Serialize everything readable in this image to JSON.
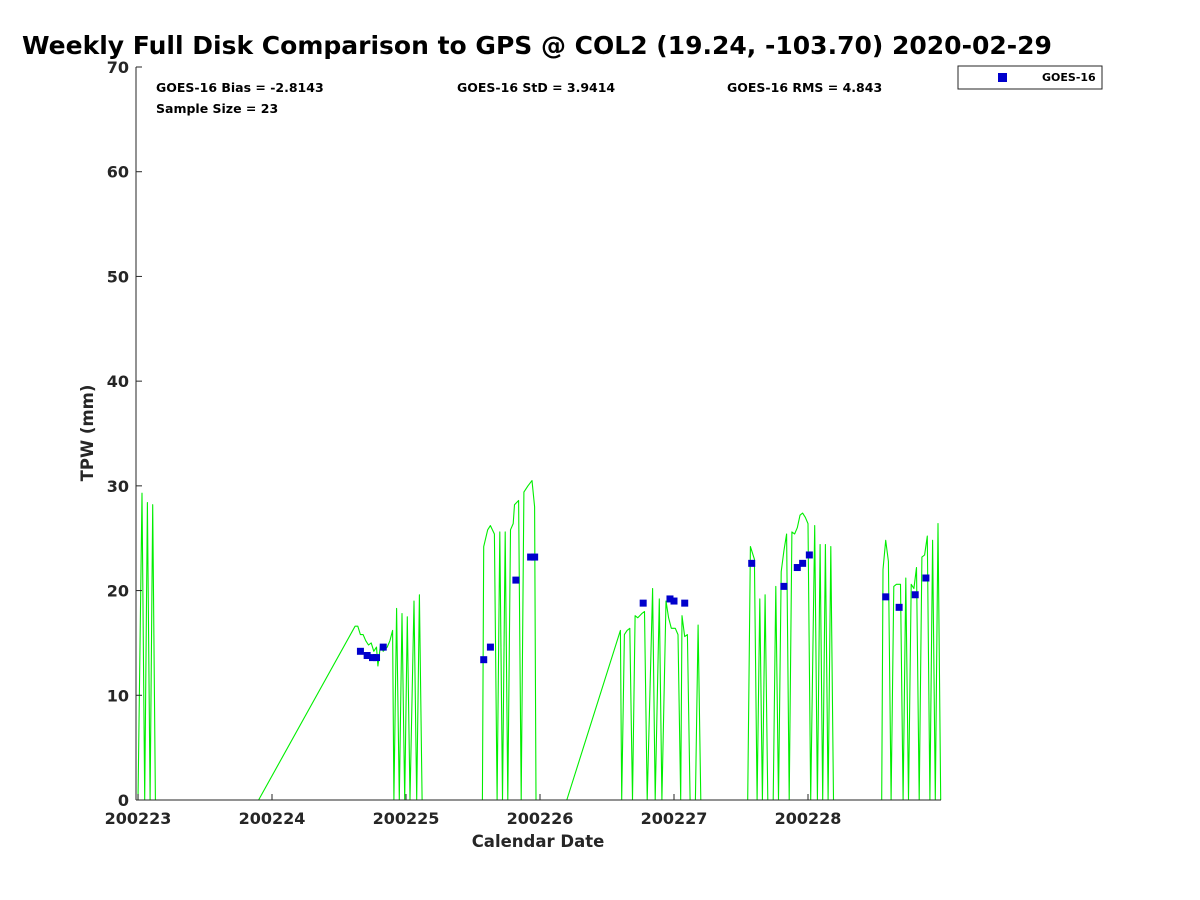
{
  "chart_data": {
    "type": "scatter",
    "title": "Weekly Full Disk Comparison to GPS @ COL2 (19.24, -103.70) 2020-02-29",
    "xlabel": "Calendar Date",
    "ylabel": "TPW (mm)",
    "xlim": [
      0,
      6
    ],
    "ylim": [
      0,
      70
    ],
    "yticks": [
      0,
      10,
      20,
      30,
      40,
      50,
      60,
      70
    ],
    "xticks": [
      {
        "v": 0,
        "label": "200223"
      },
      {
        "v": 1,
        "label": "200224"
      },
      {
        "v": 2,
        "label": "200225"
      },
      {
        "v": 3,
        "label": "200226"
      },
      {
        "v": 4,
        "label": "200227"
      },
      {
        "v": 5,
        "label": "200228"
      }
    ],
    "stats": {
      "bias": "GOES-16 Bias = -2.8143",
      "std": "GOES-16 StD = 3.9414",
      "rms": "GOES-16 RMS = 4.843",
      "sample": "Sample Size = 23"
    },
    "legend": {
      "label": "GOES-16",
      "position": "top-right",
      "color": "#0000cc"
    },
    "series": [
      {
        "name": "GOES-16",
        "color": "#0000cc",
        "points": [
          [
            1.66,
            14.2
          ],
          [
            1.71,
            13.8
          ],
          [
            1.75,
            13.6
          ],
          [
            1.78,
            13.6
          ],
          [
            1.83,
            14.6
          ],
          [
            2.58,
            13.4
          ],
          [
            2.63,
            14.6
          ],
          [
            2.82,
            21.0
          ],
          [
            2.93,
            23.2
          ],
          [
            2.96,
            23.2
          ],
          [
            3.77,
            18.8
          ],
          [
            3.97,
            19.2
          ],
          [
            4.0,
            19.0
          ],
          [
            4.08,
            18.8
          ],
          [
            4.58,
            22.6
          ],
          [
            4.82,
            20.4
          ],
          [
            4.92,
            22.2
          ],
          [
            4.96,
            22.6
          ],
          [
            5.01,
            23.4
          ],
          [
            5.58,
            19.4
          ],
          [
            5.68,
            18.4
          ],
          [
            5.8,
            19.6
          ],
          [
            5.88,
            21.2
          ]
        ]
      },
      {
        "name": "GPS",
        "color": "#00ee00",
        "points": [
          [
            0.0,
            0
          ],
          [
            0.03,
            29.3
          ],
          [
            0.05,
            0
          ],
          [
            0.07,
            28.4
          ],
          [
            0.09,
            0
          ],
          [
            0.11,
            28.2
          ],
          [
            0.13,
            0
          ],
          [
            0.9,
            0
          ],
          [
            1.62,
            16.6
          ],
          [
            1.64,
            16.6
          ],
          [
            1.66,
            15.8
          ],
          [
            1.68,
            15.8
          ],
          [
            1.7,
            15.2
          ],
          [
            1.72,
            14.8
          ],
          [
            1.74,
            15.0
          ],
          [
            1.76,
            14.2
          ],
          [
            1.78,
            14.6
          ],
          [
            1.79,
            12.8
          ],
          [
            1.81,
            14.8
          ],
          [
            1.83,
            14.2
          ],
          [
            1.86,
            14.6
          ],
          [
            1.88,
            15.2
          ],
          [
            1.9,
            16.2
          ],
          [
            1.91,
            0
          ],
          [
            1.93,
            18.3
          ],
          [
            1.95,
            0
          ],
          [
            1.97,
            17.8
          ],
          [
            1.99,
            0
          ],
          [
            2.01,
            17.5
          ],
          [
            2.03,
            0
          ],
          [
            2.06,
            19.0
          ],
          [
            2.08,
            0
          ],
          [
            2.1,
            19.6
          ],
          [
            2.12,
            0
          ],
          [
            2.57,
            0
          ],
          [
            2.58,
            24.2
          ],
          [
            2.61,
            25.8
          ],
          [
            2.63,
            26.2
          ],
          [
            2.66,
            25.4
          ],
          [
            2.68,
            0
          ],
          [
            2.7,
            25.6
          ],
          [
            2.72,
            0
          ],
          [
            2.74,
            25.6
          ],
          [
            2.76,
            0
          ],
          [
            2.78,
            25.8
          ],
          [
            2.8,
            26.4
          ],
          [
            2.81,
            28.2
          ],
          [
            2.84,
            28.6
          ],
          [
            2.86,
            0
          ],
          [
            2.88,
            29.4
          ],
          [
            2.91,
            30.0
          ],
          [
            2.94,
            30.5
          ],
          [
            2.96,
            28.0
          ],
          [
            2.97,
            0
          ],
          [
            3.2,
            0
          ],
          [
            3.6,
            16.2
          ],
          [
            3.61,
            0
          ],
          [
            3.63,
            15.8
          ],
          [
            3.65,
            16.2
          ],
          [
            3.67,
            16.4
          ],
          [
            3.69,
            0
          ],
          [
            3.71,
            17.6
          ],
          [
            3.73,
            17.4
          ],
          [
            3.76,
            17.8
          ],
          [
            3.78,
            18.0
          ],
          [
            3.8,
            0
          ],
          [
            3.84,
            20.2
          ],
          [
            3.86,
            0
          ],
          [
            3.89,
            19.2
          ],
          [
            3.91,
            0
          ],
          [
            3.94,
            19.0
          ],
          [
            3.96,
            17.4
          ],
          [
            3.98,
            16.4
          ],
          [
            4.01,
            16.4
          ],
          [
            4.03,
            15.8
          ],
          [
            4.05,
            0
          ],
          [
            4.06,
            17.6
          ],
          [
            4.08,
            15.6
          ],
          [
            4.1,
            15.8
          ],
          [
            4.12,
            0
          ],
          [
            4.16,
            0
          ],
          [
            4.18,
            16.7
          ],
          [
            4.2,
            0
          ],
          [
            4.55,
            0
          ],
          [
            4.57,
            24.2
          ],
          [
            4.6,
            23.0
          ],
          [
            4.62,
            0
          ],
          [
            4.64,
            19.2
          ],
          [
            4.66,
            0
          ],
          [
            4.68,
            19.6
          ],
          [
            4.7,
            0
          ],
          [
            4.74,
            0
          ],
          [
            4.76,
            20.4
          ],
          [
            4.78,
            0
          ],
          [
            4.8,
            21.8
          ],
          [
            4.82,
            23.8
          ],
          [
            4.84,
            25.4
          ],
          [
            4.86,
            0
          ],
          [
            4.88,
            25.6
          ],
          [
            4.9,
            25.4
          ],
          [
            4.92,
            26.0
          ],
          [
            4.94,
            27.2
          ],
          [
            4.96,
            27.4
          ],
          [
            4.98,
            27.0
          ],
          [
            5.0,
            26.4
          ],
          [
            5.02,
            0
          ],
          [
            5.05,
            26.2
          ],
          [
            5.07,
            0
          ],
          [
            5.09,
            24.4
          ],
          [
            5.11,
            0
          ],
          [
            5.13,
            24.4
          ],
          [
            5.15,
            0
          ],
          [
            5.17,
            24.2
          ],
          [
            5.19,
            0
          ],
          [
            5.55,
            0
          ],
          [
            5.56,
            22.0
          ],
          [
            5.58,
            24.8
          ],
          [
            5.6,
            22.8
          ],
          [
            5.62,
            0
          ],
          [
            5.64,
            20.4
          ],
          [
            5.66,
            20.6
          ],
          [
            5.69,
            20.6
          ],
          [
            5.71,
            0
          ],
          [
            5.73,
            21.2
          ],
          [
            5.75,
            0
          ],
          [
            5.77,
            20.6
          ],
          [
            5.79,
            20.2
          ],
          [
            5.81,
            22.2
          ],
          [
            5.83,
            0
          ],
          [
            5.85,
            23.2
          ],
          [
            5.87,
            23.4
          ],
          [
            5.89,
            25.2
          ],
          [
            5.91,
            0
          ],
          [
            5.93,
            24.8
          ],
          [
            5.95,
            0
          ],
          [
            5.97,
            26.4
          ],
          [
            5.99,
            0
          ]
        ]
      }
    ]
  }
}
